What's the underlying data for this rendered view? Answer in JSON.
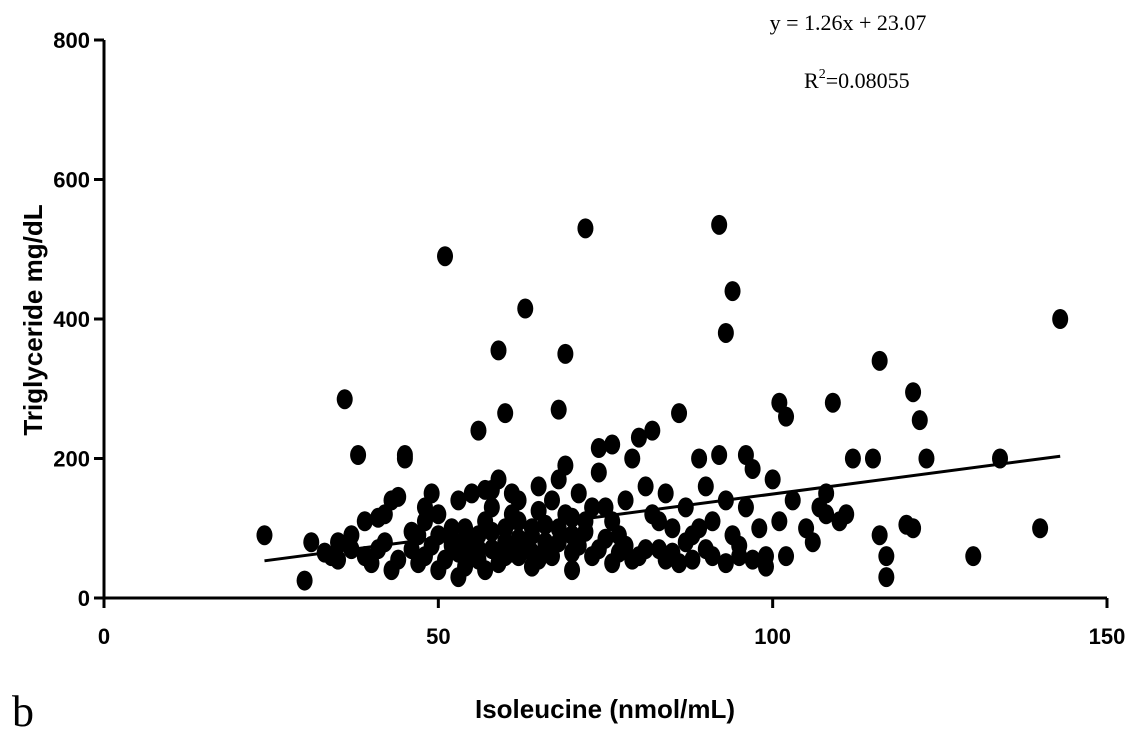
{
  "chart_data": {
    "type": "scatter",
    "xlabel": "Isoleucine (nmol/mL)",
    "ylabel": "Triglyceride mg/dL",
    "xlim": [
      0,
      150
    ],
    "ylim": [
      0,
      800
    ],
    "xticks": [
      "0",
      "50",
      "100",
      "150"
    ],
    "yticks": [
      "0",
      "200",
      "400",
      "600",
      "800"
    ],
    "panel_label": "b",
    "annotation": {
      "equation": "y = 1.26x + 23.07",
      "r2_prefix": "R",
      "r2_sup": "2",
      "r2_value": "=0.08055"
    },
    "fit_line": {
      "slope": 1.26,
      "intercept": 23.07,
      "x_range": [
        24,
        143
      ]
    },
    "grid": false,
    "points": [
      [
        24,
        90
      ],
      [
        30,
        25
      ],
      [
        31,
        80
      ],
      [
        34,
        60
      ],
      [
        35,
        80
      ],
      [
        36,
        285
      ],
      [
        37,
        70
      ],
      [
        38,
        205
      ],
      [
        39,
        110
      ],
      [
        40,
        50
      ],
      [
        41,
        115
      ],
      [
        42,
        80
      ],
      [
        43,
        40
      ],
      [
        43,
        140
      ],
      [
        44,
        145
      ],
      [
        45,
        205
      ],
      [
        45,
        200
      ],
      [
        46,
        70
      ],
      [
        47,
        90
      ],
      [
        48,
        60
      ],
      [
        48,
        110
      ],
      [
        49,
        150
      ],
      [
        50,
        40
      ],
      [
        50,
        120
      ],
      [
        51,
        490
      ],
      [
        52,
        80
      ],
      [
        53,
        30
      ],
      [
        54,
        100
      ],
      [
        55,
        150
      ],
      [
        55,
        60
      ],
      [
        56,
        240
      ],
      [
        56,
        90
      ],
      [
        57,
        40
      ],
      [
        58,
        130
      ],
      [
        58,
        155
      ],
      [
        59,
        355
      ],
      [
        59,
        170
      ],
      [
        60,
        265
      ],
      [
        60,
        80
      ],
      [
        61,
        150
      ],
      [
        62,
        110
      ],
      [
        62,
        60
      ],
      [
        63,
        415
      ],
      [
        64,
        100
      ],
      [
        64,
        45
      ],
      [
        65,
        125
      ],
      [
        66,
        80
      ],
      [
        67,
        140
      ],
      [
        68,
        270
      ],
      [
        68,
        170
      ],
      [
        69,
        350
      ],
      [
        69,
        190
      ],
      [
        70,
        90
      ],
      [
        70,
        40
      ],
      [
        71,
        150
      ],
      [
        72,
        530
      ],
      [
        72,
        110
      ],
      [
        73,
        60
      ],
      [
        74,
        180
      ],
      [
        74,
        215
      ],
      [
        75,
        130
      ],
      [
        76,
        220
      ],
      [
        76,
        50
      ],
      [
        77,
        90
      ],
      [
        78,
        140
      ],
      [
        79,
        200
      ],
      [
        80,
        60
      ],
      [
        80,
        230
      ],
      [
        81,
        160
      ],
      [
        82,
        120
      ],
      [
        82,
        240
      ],
      [
        83,
        70
      ],
      [
        84,
        150
      ],
      [
        85,
        100
      ],
      [
        86,
        265
      ],
      [
        86,
        50
      ],
      [
        87,
        130
      ],
      [
        88,
        90
      ],
      [
        89,
        200
      ],
      [
        90,
        160
      ],
      [
        91,
        60
      ],
      [
        92,
        535
      ],
      [
        92,
        205
      ],
      [
        93,
        380
      ],
      [
        93,
        140
      ],
      [
        94,
        440
      ],
      [
        94,
        90
      ],
      [
        95,
        60
      ],
      [
        96,
        205
      ],
      [
        96,
        130
      ],
      [
        97,
        185
      ],
      [
        98,
        100
      ],
      [
        99,
        60
      ],
      [
        100,
        170
      ],
      [
        101,
        280
      ],
      [
        101,
        110
      ],
      [
        102,
        260
      ],
      [
        102,
        60
      ],
      [
        105,
        100
      ],
      [
        106,
        80
      ],
      [
        107,
        130
      ],
      [
        108,
        150
      ],
      [
        109,
        280
      ],
      [
        110,
        110
      ],
      [
        111,
        120
      ],
      [
        112,
        200
      ],
      [
        115,
        200
      ],
      [
        116,
        340
      ],
      [
        116,
        90
      ],
      [
        117,
        60
      ],
      [
        117,
        30
      ],
      [
        120,
        105
      ],
      [
        121,
        100
      ],
      [
        121,
        295
      ],
      [
        122,
        255
      ],
      [
        123,
        200
      ],
      [
        130,
        60
      ],
      [
        134,
        200
      ],
      [
        140,
        100
      ],
      [
        143,
        400
      ],
      [
        33,
        65
      ],
      [
        35,
        55
      ],
      [
        37,
        90
      ],
      [
        39,
        60
      ],
      [
        41,
        70
      ],
      [
        44,
        55
      ],
      [
        46,
        95
      ],
      [
        47,
        50
      ],
      [
        49,
        75
      ],
      [
        50,
        90
      ],
      [
        51,
        55
      ],
      [
        52,
        100
      ],
      [
        53,
        65
      ],
      [
        54,
        45
      ],
      [
        55,
        75
      ],
      [
        56,
        55
      ],
      [
        57,
        110
      ],
      [
        58,
        70
      ],
      [
        59,
        50
      ],
      [
        60,
        100
      ],
      [
        61,
        65
      ],
      [
        62,
        140
      ],
      [
        63,
        70
      ],
      [
        64,
        90
      ],
      [
        65,
        55
      ],
      [
        66,
        105
      ],
      [
        67,
        60
      ],
      [
        68,
        80
      ],
      [
        69,
        120
      ],
      [
        70,
        65
      ],
      [
        71,
        75
      ],
      [
        72,
        95
      ],
      [
        73,
        130
      ],
      [
        74,
        70
      ],
      [
        75,
        85
      ],
      [
        76,
        110
      ],
      [
        77,
        65
      ],
      [
        78,
        75
      ],
      [
        79,
        55
      ],
      [
        81,
        70
      ],
      [
        83,
        110
      ],
      [
        84,
        55
      ],
      [
        85,
        65
      ],
      [
        87,
        80
      ],
      [
        88,
        55
      ],
      [
        89,
        100
      ],
      [
        90,
        70
      ],
      [
        91,
        110
      ],
      [
        93,
        50
      ],
      [
        95,
        75
      ],
      [
        97,
        55
      ],
      [
        99,
        45
      ],
      [
        103,
        140
      ],
      [
        108,
        120
      ],
      [
        42,
        120
      ],
      [
        48,
        130
      ],
      [
        53,
        140
      ],
      [
        57,
        155
      ],
      [
        61,
        120
      ],
      [
        65,
        160
      ],
      [
        52,
        75
      ],
      [
        54,
        85
      ],
      [
        56,
        70
      ],
      [
        58,
        95
      ],
      [
        60,
        60
      ],
      [
        62,
        85
      ],
      [
        64,
        65
      ],
      [
        66,
        70
      ],
      [
        68,
        100
      ],
      [
        70,
        115
      ]
    ]
  }
}
